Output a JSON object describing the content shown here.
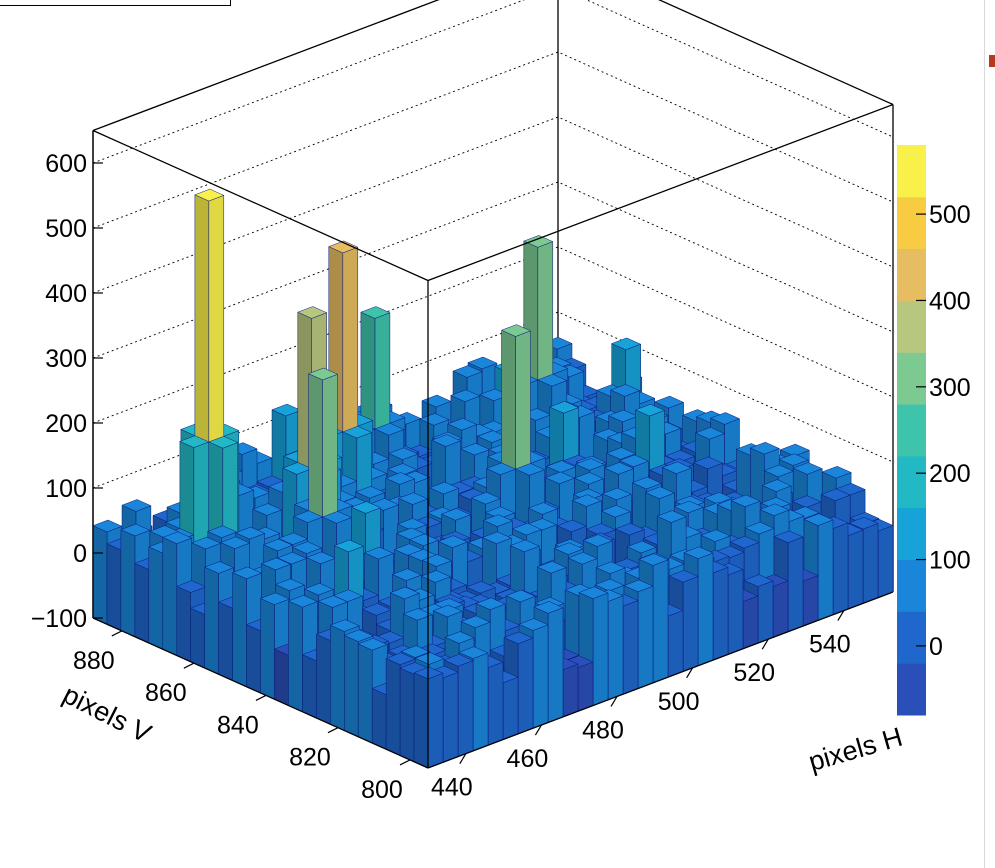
{
  "chart_data": {
    "type": "lego3d",
    "title": "",
    "xlabel": "pixels H",
    "ylabel": "pixels V",
    "zlabel": "",
    "x_range": [
      430,
      553
    ],
    "y_range": [
      795,
      888
    ],
    "z_range": [
      -100,
      650
    ],
    "x_ticks": [
      440,
      460,
      480,
      500,
      520,
      540
    ],
    "y_ticks": [
      800,
      820,
      840,
      860,
      880
    ],
    "z_ticks": [
      -100,
      0,
      100,
      200,
      300,
      400,
      500,
      600
    ],
    "colorbar": {
      "range": [
        -80,
        580
      ],
      "ticks": [
        0,
        100,
        200,
        300,
        400,
        500
      ],
      "palette": [
        "#2a4fb8",
        "#1f67cc",
        "#1a86d9",
        "#17a2d8",
        "#22b8c4",
        "#3ec4aa",
        "#7cc992",
        "#b8c77f",
        "#e6bd60",
        "#f7cc42",
        "#f9f049"
      ]
    },
    "background_level_approx": 20,
    "peaks": [
      {
        "x": 447,
        "y": 873,
        "z": 545
      },
      {
        "x": 455,
        "y": 850,
        "z": 310
      },
      {
        "x": 479,
        "y": 872,
        "z": 405
      },
      {
        "x": 497,
        "y": 877,
        "z": 250
      },
      {
        "x": 500,
        "y": 842,
        "z": 300
      },
      {
        "x": 530,
        "y": 872,
        "z": 300
      },
      {
        "x": 467,
        "y": 868,
        "z": 340
      }
    ]
  }
}
